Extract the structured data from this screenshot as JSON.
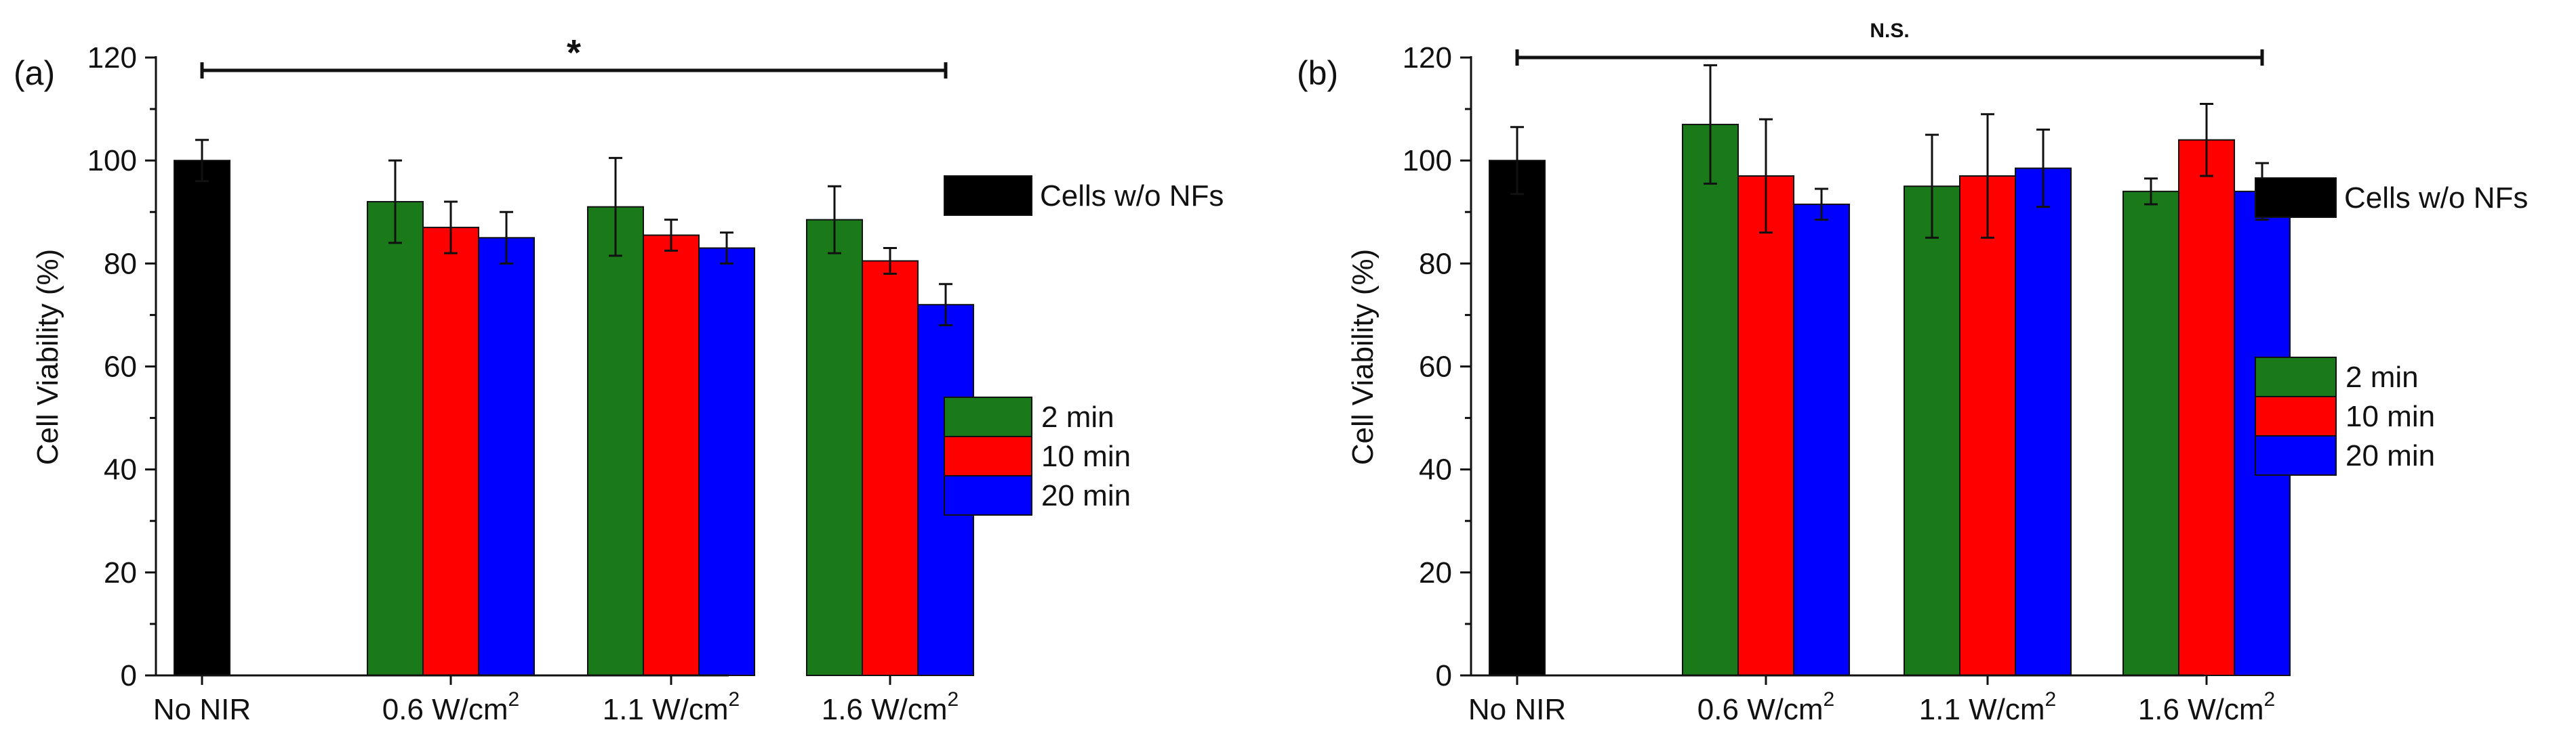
{
  "colors": {
    "control": "#000000",
    "2min": "#1a7a1a",
    "10min": "#ff0000",
    "20min": "#0000ff",
    "axis": "#111111"
  },
  "chart_data": [
    {
      "type": "bar",
      "panel_label": "(a)",
      "title": "",
      "xlabel": "",
      "ylabel": "Cell Viability (%)",
      "ylim": [
        0,
        120
      ],
      "yticks": [
        "0",
        "20",
        "40",
        "60",
        "80",
        "100",
        "120"
      ],
      "grid": false,
      "categories": [
        {
          "base": "No NIR",
          "sup": ""
        },
        {
          "base": "0.6 W/cm",
          "sup": "2"
        },
        {
          "base": "1.1 W/cm",
          "sup": "2"
        },
        {
          "base": "1.6 W/cm",
          "sup": "2"
        }
      ],
      "control": {
        "name": "Cells w/o NFs",
        "value": 100,
        "error": 4
      },
      "series": [
        {
          "name": "2 min",
          "values": [
            null,
            92,
            91,
            88.5
          ],
          "errors": [
            null,
            8,
            9.5,
            6.5
          ]
        },
        {
          "name": "10 min",
          "values": [
            null,
            87,
            85.5,
            80.5
          ],
          "errors": [
            null,
            5,
            3,
            2.5
          ]
        },
        {
          "name": "20 min",
          "values": [
            null,
            85,
            83,
            72
          ],
          "errors": [
            null,
            5,
            3,
            4
          ]
        }
      ],
      "significance": {
        "label": "*",
        "value": 117.5,
        "from": "No NIR",
        "to": "1.6 W/cm2 20 min"
      },
      "legend": {
        "control_position": "right-upper",
        "series_position": "right-middle"
      }
    },
    {
      "type": "bar",
      "panel_label": "(b)",
      "title": "",
      "xlabel": "",
      "ylabel": "Cell Viability (%)",
      "ylim": [
        0,
        120
      ],
      "yticks": [
        "0",
        "20",
        "40",
        "60",
        "80",
        "100",
        "120"
      ],
      "grid": false,
      "categories": [
        {
          "base": "No NIR",
          "sup": ""
        },
        {
          "base": "0.6 W/cm",
          "sup": "2"
        },
        {
          "base": "1.1 W/cm",
          "sup": "2"
        },
        {
          "base": "1.6 W/cm",
          "sup": "2"
        }
      ],
      "control": {
        "name": "Cells w/o NFs",
        "value": 100,
        "error": 6.5
      },
      "series": [
        {
          "name": "2 min",
          "values": [
            null,
            107,
            95,
            94
          ],
          "errors": [
            null,
            11.5,
            10,
            2.5
          ]
        },
        {
          "name": "10 min",
          "values": [
            null,
            97,
            97,
            104
          ],
          "errors": [
            null,
            11,
            12,
            7
          ]
        },
        {
          "name": "20 min",
          "values": [
            null,
            91.5,
            98.5,
            94
          ],
          "errors": [
            null,
            3,
            7.5,
            5.5
          ]
        }
      ],
      "significance": {
        "label": "N.S.",
        "value": 120,
        "from": "No NIR",
        "to": "1.6 W/cm2 20 min"
      },
      "legend": {
        "control_position": "right-upper",
        "series_position": "right-middle"
      }
    }
  ]
}
